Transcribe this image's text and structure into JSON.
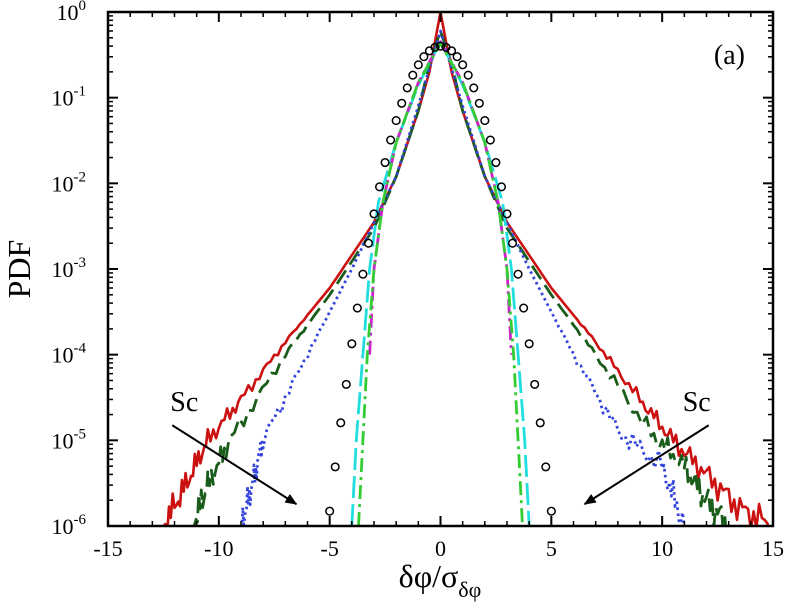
{
  "chart_data": {
    "type": "line",
    "title": "",
    "panel_label": "(a)",
    "xlabel": "δφ/σ",
    "xlabel_subscript": "δφ",
    "ylabel": "PDF",
    "xlim": [
      -15,
      15
    ],
    "ylim": [
      1e-06,
      1
    ],
    "y_scale": "log",
    "x_ticks": [
      -15,
      -10,
      -5,
      0,
      5,
      10,
      15
    ],
    "x_tick_labels": [
      "-15",
      "-10",
      "-5",
      "0",
      "5",
      "10",
      "15"
    ],
    "y_ticks": [
      1,
      0.1,
      0.01,
      0.001,
      0.0001,
      1e-05,
      1e-06
    ],
    "y_tick_labels": [
      {
        "base": "10",
        "exp": "0"
      },
      {
        "base": "10",
        "exp": "-1"
      },
      {
        "base": "10",
        "exp": "-2"
      },
      {
        "base": "10",
        "exp": "-3"
      },
      {
        "base": "10",
        "exp": "-4"
      },
      {
        "base": "10",
        "exp": "-5"
      },
      {
        "base": "10",
        "exp": "-6"
      }
    ],
    "grid": false,
    "legend": "none",
    "annotations": [
      {
        "text": "Sc",
        "side": "left",
        "arrow_from": [
          -12.1,
          1.5e-05
        ],
        "arrow_to": [
          -6.5,
          1.8e-06
        ]
      },
      {
        "text": "Sc",
        "side": "right",
        "arrow_from": [
          12.1,
          1.5e-05
        ],
        "arrow_to": [
          6.5,
          1.8e-06
        ]
      }
    ],
    "series": [
      {
        "style": "solid",
        "color": "#cc1111",
        "points": [
          [
            -12.5,
            1e-06
          ],
          [
            -11.5,
            3e-06
          ],
          [
            -10.5,
            1e-05
          ],
          [
            -9,
            3e-05
          ],
          [
            -7,
            0.00014
          ],
          [
            -5,
            0.0006
          ],
          [
            -3,
            0.0035
          ],
          [
            -2,
            0.012
          ],
          [
            -1,
            0.07
          ],
          [
            -0.5,
            0.2
          ],
          [
            0,
            1
          ],
          [
            0.5,
            0.2
          ],
          [
            1,
            0.07
          ],
          [
            2,
            0.012
          ],
          [
            3,
            0.0035
          ],
          [
            5,
            0.0006
          ],
          [
            7,
            0.00014
          ],
          [
            9,
            3e-05
          ],
          [
            10.5,
            1e-05
          ],
          [
            12,
            4e-06
          ],
          [
            13.5,
            1.6e-06
          ],
          [
            15,
            1e-06
          ]
        ]
      },
      {
        "style": "dashed",
        "color": "#1a5c1a",
        "points": [
          [
            -11.2,
            1e-06
          ],
          [
            -10.5,
            3e-06
          ],
          [
            -9.5,
            1e-05
          ],
          [
            -7,
            0.0001
          ],
          [
            -5,
            0.0005
          ],
          [
            -3,
            0.003
          ],
          [
            -2,
            0.012
          ],
          [
            -1,
            0.07
          ],
          [
            -0.5,
            0.25
          ],
          [
            0,
            0.6
          ],
          [
            0.5,
            0.25
          ],
          [
            1,
            0.07
          ],
          [
            2,
            0.012
          ],
          [
            3,
            0.003
          ],
          [
            5,
            0.0005
          ],
          [
            7,
            0.0001
          ],
          [
            9.5,
            1.2e-05
          ],
          [
            11,
            5e-06
          ],
          [
            12,
            2e-06
          ],
          [
            13,
            1e-06
          ]
        ]
      },
      {
        "style": "dotted",
        "color": "#3344dd",
        "points": [
          [
            -9,
            1e-06
          ],
          [
            -8.5,
            3e-06
          ],
          [
            -8,
            1e-05
          ],
          [
            -6,
            0.0001
          ],
          [
            -4,
            0.001
          ],
          [
            -3,
            0.0035
          ],
          [
            -2,
            0.012
          ],
          [
            -1,
            0.08
          ],
          [
            0,
            0.6
          ],
          [
            1,
            0.08
          ],
          [
            2,
            0.012
          ],
          [
            3,
            0.0035
          ],
          [
            4,
            0.001
          ],
          [
            6,
            0.0001
          ],
          [
            8,
            1.3e-05
          ],
          [
            10,
            5e-06
          ],
          [
            11,
            1e-06
          ]
        ]
      },
      {
        "style": "long-dash",
        "color": "#22dddd",
        "points": [
          [
            -4,
            1e-06
          ],
          [
            -3.8,
            1e-05
          ],
          [
            -3.5,
            0.0001
          ],
          [
            -3.2,
            0.001
          ],
          [
            -2.8,
            0.006
          ],
          [
            -2,
            0.03
          ],
          [
            -1,
            0.14
          ],
          [
            0,
            0.45
          ],
          [
            1,
            0.14
          ],
          [
            2,
            0.03
          ],
          [
            2.8,
            0.006
          ],
          [
            3.2,
            0.001
          ],
          [
            3.5,
            0.0001
          ],
          [
            3.8,
            1e-05
          ],
          [
            4,
            1e-06
          ]
        ]
      },
      {
        "style": "dash-dot",
        "color": "#cc22cc",
        "points": [
          [
            -3.2,
            0.0001
          ],
          [
            -3,
            0.001
          ],
          [
            -2.6,
            0.006
          ],
          [
            -2,
            0.03
          ],
          [
            -1,
            0.15
          ],
          [
            0,
            0.45
          ],
          [
            1,
            0.15
          ],
          [
            2,
            0.03
          ],
          [
            2.6,
            0.006
          ],
          [
            3,
            0.001
          ],
          [
            3.2,
            0.0001
          ]
        ]
      },
      {
        "style": "dash-dot",
        "color": "#33cc33",
        "points": [
          [
            -3.7,
            1e-06
          ],
          [
            -3.5,
            1e-05
          ],
          [
            -3.3,
            0.0001
          ],
          [
            -3,
            0.001
          ],
          [
            -2.6,
            0.006
          ],
          [
            -2,
            0.03
          ],
          [
            -1,
            0.15
          ],
          [
            0,
            0.43
          ],
          [
            1,
            0.15
          ],
          [
            2,
            0.03
          ],
          [
            2.6,
            0.006
          ],
          [
            3,
            0.001
          ],
          [
            3.3,
            0.0001
          ],
          [
            3.5,
            1e-05
          ],
          [
            3.7,
            1e-06
          ]
        ]
      },
      {
        "style": "circles",
        "color": "#000000",
        "gaussian": {
          "sigma": 1,
          "amplitude": 0.3989
        },
        "points": [
          [
            -5,
            1.49e-06
          ],
          [
            -4.75,
            4.9e-06
          ],
          [
            -4.5,
            1.6e-05
          ],
          [
            -4.25,
            4.5e-05
          ],
          [
            -4,
            0.000134
          ],
          [
            -3.75,
            0.00035
          ],
          [
            -3.5,
            0.00087
          ],
          [
            -3.25,
            0.002
          ],
          [
            -3,
            0.0044
          ],
          [
            -2.75,
            0.0091
          ],
          [
            -2.5,
            0.0175
          ],
          [
            -2.25,
            0.032
          ],
          [
            -2,
            0.054
          ],
          [
            -1.75,
            0.086
          ],
          [
            -1.5,
            0.13
          ],
          [
            -1.25,
            0.183
          ],
          [
            -1,
            0.242
          ],
          [
            -0.75,
            0.301
          ],
          [
            -0.5,
            0.352
          ],
          [
            -0.25,
            0.387
          ],
          [
            0,
            0.399
          ],
          [
            0.25,
            0.387
          ],
          [
            0.5,
            0.352
          ],
          [
            0.75,
            0.301
          ],
          [
            1,
            0.242
          ],
          [
            1.25,
            0.183
          ],
          [
            1.5,
            0.13
          ],
          [
            1.75,
            0.086
          ],
          [
            2,
            0.054
          ],
          [
            2.25,
            0.032
          ],
          [
            2.5,
            0.0175
          ],
          [
            2.75,
            0.0091
          ],
          [
            3,
            0.0044
          ],
          [
            3.25,
            0.002
          ],
          [
            3.5,
            0.00087
          ],
          [
            3.75,
            0.00035
          ],
          [
            4,
            0.000134
          ],
          [
            4.25,
            4.5e-05
          ],
          [
            4.5,
            1.6e-05
          ],
          [
            4.75,
            4.9e-06
          ],
          [
            5,
            1.49e-06
          ]
        ]
      }
    ]
  }
}
